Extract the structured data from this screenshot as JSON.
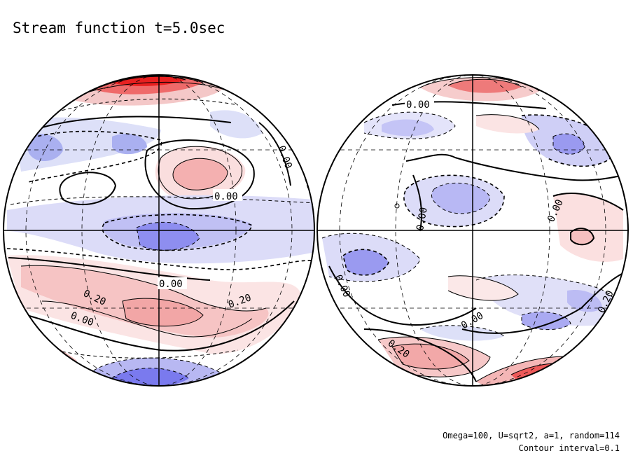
{
  "title": "Stream function t=5.0sec",
  "contour_labels": {
    "left": [
      "0.00",
      "0.00",
      "0.00",
      "0.20",
      "0.20",
      "0.00"
    ],
    "right": [
      "0.00",
      "0.00",
      "0.00",
      "0.00",
      "0.20",
      "0.00",
      "0.20"
    ]
  },
  "footer": {
    "params": "Omega=100, U=sqrt2, a=1, random=114",
    "interval": "Contour interval=0.1"
  },
  "colors": {
    "positive": "#f4b9b9",
    "positive_strong": "#ee3030",
    "negative": "#c6c6f4",
    "negative_strong": "#8080f0",
    "line": "#000000"
  }
}
